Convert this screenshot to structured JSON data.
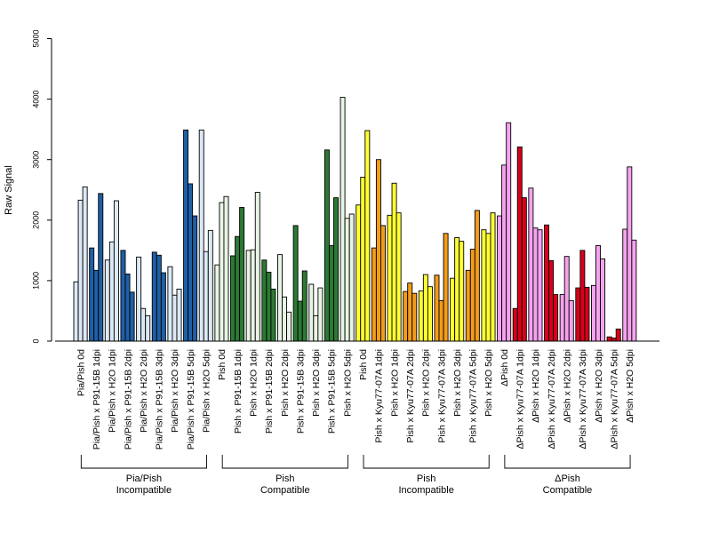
{
  "chart_data": {
    "type": "bar",
    "ylabel": "Raw Signal",
    "ylim": [
      0,
      5000
    ],
    "yticks": [
      0,
      1000,
      2000,
      3000,
      4000,
      5000
    ],
    "categories": [
      "Pia/Pish 0d",
      "Pia/Pish x P91-15B 1dpi",
      "Pia/Pish x H2O 1dpi",
      "Pia/Pish x P91-15B 2dpi",
      "Pia/Pish x H2O 2dpi",
      "Pia/Pish x P91-15B 3dpi",
      "Pia/Pish x H2O 3dpi",
      "Pia/Pish x P91-15B 5dpi",
      "Pia/Pish x H2O 5dpi",
      "Pish 0d",
      "Pish x P91-15B 1dpi",
      "Pish x H2O 1dpi",
      "Pish x P91-15B 2dpi",
      "Pish x H2O 2dpi",
      "Pish x P91-15B 3dpi",
      "Pish x H2O 3dpi",
      "Pish x P91-15B 5dpi",
      "Pish x H2O 5dpi",
      "Pish 0d",
      "Pish x Kyu77-07A 1dpi",
      "Pish x H2O 1dpi",
      "Pish x Kyu77-07A 2dpi",
      "Pish x H2O 2dpi",
      "Pish x Kyu77-07A 3dpi",
      "Pish x H2O 3dpi",
      "Pish x Kyu77-07A 5dpi",
      "Pish x H2O 5dpi",
      "ΔPish 0d",
      "ΔPish x Kyu77-07A 1dpi",
      "ΔPish x H2O 1dpi",
      "ΔPish x Kyu77-07A 2dpi",
      "ΔPish x H2O 2dpi",
      "ΔPish x Kyu77-07A 3dpi",
      "ΔPish x H2O 3dpi",
      "ΔPish x Kyu77-07A 5dpi",
      "ΔPish x H2O 5dpi"
    ],
    "values": [
      [
        980,
        2330,
        2550
      ],
      [
        1540,
        1170,
        2440
      ],
      [
        1340,
        1640,
        2320
      ],
      [
        1500,
        1110,
        810
      ],
      [
        1390,
        540,
        420
      ],
      [
        1470,
        1420,
        1130
      ],
      [
        1230,
        760,
        860
      ],
      [
        3490,
        2600,
        2070
      ],
      [
        3490,
        1480,
        1830
      ],
      [
        1260,
        2290,
        2390
      ],
      [
        1410,
        1730,
        2210
      ],
      [
        1500,
        1510,
        2460
      ],
      [
        1340,
        1140,
        860
      ],
      [
        1430,
        730,
        480
      ],
      [
        1910,
        660,
        1160
      ],
      [
        940,
        420,
        880
      ],
      [
        3160,
        1580,
        2370
      ],
      [
        4030,
        2030,
        2100
      ],
      [
        2250,
        2710,
        3480
      ],
      [
        1540,
        3000,
        1910
      ],
      [
        2080,
        2610,
        2120
      ],
      [
        820,
        960,
        790
      ],
      [
        830,
        1100,
        900
      ],
      [
        1090,
        670,
        1780
      ],
      [
        1040,
        1710,
        1650
      ],
      [
        1170,
        1520,
        2160
      ],
      [
        1840,
        1780,
        2120
      ],
      [
        2070,
        2910,
        3610
      ],
      [
        540,
        3210,
        2370
      ],
      [
        2530,
        1870,
        1840
      ],
      [
        1920,
        1330,
        770
      ],
      [
        770,
        1400,
        670
      ],
      [
        880,
        1500,
        890
      ],
      [
        920,
        1580,
        1360
      ],
      [
        70,
        50,
        200
      ],
      [
        1850,
        2880,
        1670
      ]
    ],
    "bar_colors": [
      "#dce9f5",
      "#1f5fa6",
      "#dce9f5",
      "#1f5fa6",
      "#dce9f5",
      "#1f5fa6",
      "#dce9f5",
      "#1f5fa6",
      "#dce9f5",
      "#e8f4e4",
      "#2a7a33",
      "#e8f4e4",
      "#2a7a33",
      "#e8f4e4",
      "#2a7a33",
      "#e8f4e4",
      "#2a7a33",
      "#e8f4e4",
      "#ffff33",
      "#f39c1a",
      "#ffff33",
      "#f39c1a",
      "#ffff33",
      "#f39c1a",
      "#ffff33",
      "#f39c1a",
      "#ffff33",
      "#f5a3ef",
      "#d9001b",
      "#f5a3ef",
      "#d9001b",
      "#f5a3ef",
      "#d9001b",
      "#f5a3ef",
      "#d9001b",
      "#f5a3ef"
    ],
    "groups": [
      {
        "label1": "Pia/Pish",
        "label2": "Incompatible",
        "start": 0,
        "end": 8
      },
      {
        "label1": "Pish",
        "label2": "Compatible",
        "start": 9,
        "end": 17
      },
      {
        "label1": "Pish",
        "label2": "Incompatible",
        "start": 18,
        "end": 26
      },
      {
        "label1": "ΔPish",
        "label2": "Compatible",
        "start": 27,
        "end": 35
      }
    ]
  }
}
